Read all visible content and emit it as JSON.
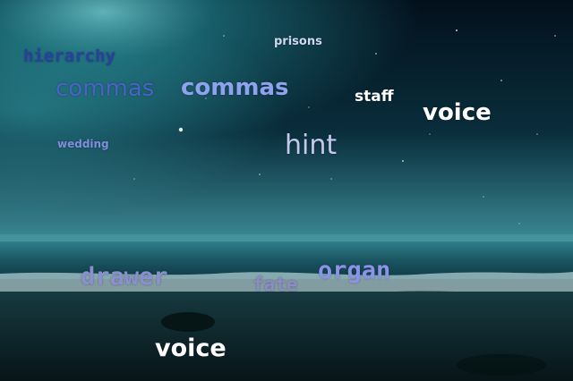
{
  "scene": {
    "colors": {
      "sky_top": "#03101c",
      "aurora": "#2aa6b0",
      "aurora_glow": "#7fe6ea",
      "horizon": "#3d8c97",
      "sea": "#0d3a45",
      "foam": "#b8d8dc",
      "sand": "#0b1d22"
    }
  },
  "words": [
    {
      "id": "hierarchy",
      "text": "hierarchy",
      "color": "#2b3fa0"
    },
    {
      "id": "prisons",
      "text": "prisons",
      "color": "#cdd8f0"
    },
    {
      "id": "commas1",
      "text": "commas",
      "color": "#4a62c8"
    },
    {
      "id": "commas2",
      "text": "commas",
      "color": "#8fa2f0"
    },
    {
      "id": "staff",
      "text": "staff",
      "color": "#ffffff"
    },
    {
      "id": "voice1",
      "text": "voice",
      "color": "#ffffff"
    },
    {
      "id": "wedding",
      "text": "wedding",
      "color": "#7f8ee0"
    },
    {
      "id": "hint",
      "text": "hint",
      "color": "#c4c8ec"
    },
    {
      "id": "drawer",
      "text": "drawer",
      "color": "#8a8fce"
    },
    {
      "id": "fate",
      "text": "fate",
      "color": "#8b8cc4"
    },
    {
      "id": "organ",
      "text": "organ",
      "color": "#8b92e8"
    },
    {
      "id": "voice2",
      "text": "voice",
      "color": "#ffffff"
    }
  ]
}
